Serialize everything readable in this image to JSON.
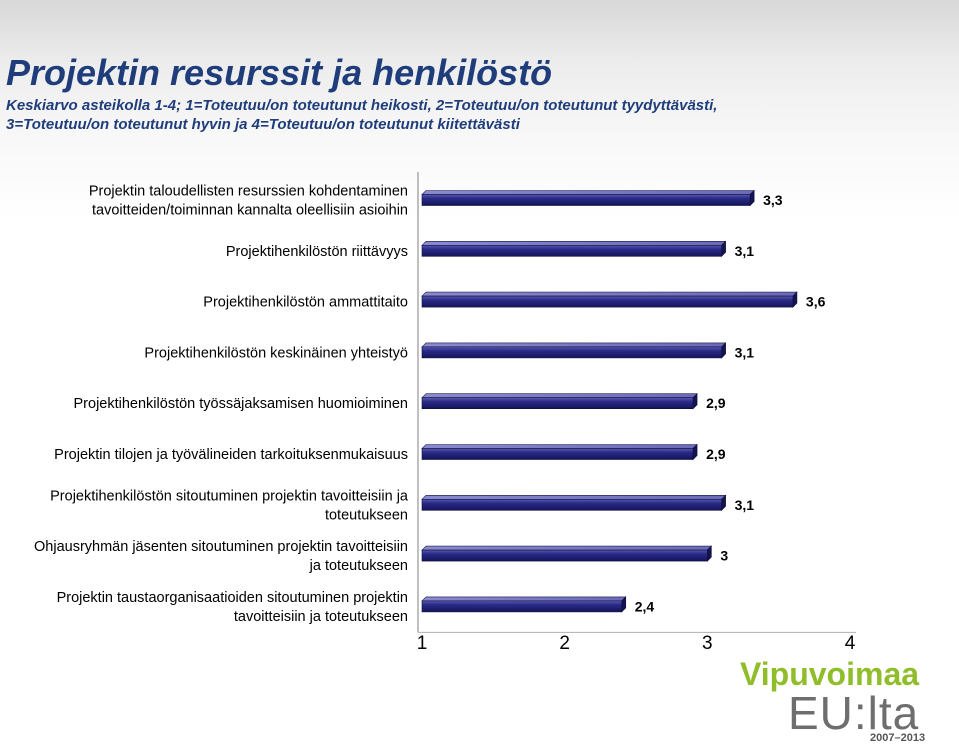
{
  "header": {
    "title": "Projektin resurssit ja henkilöstö",
    "subtitle_line1": "Keskiarvo asteikolla 1-4; 1=Toteutuu/on toteutunut heikosti, 2=Toteutuu/on toteutunut tyydyttävästi,",
    "subtitle_line2": "3=Toteutuu/on toteutunut hyvin ja 4=Toteutuu/on toteutunut kiitettävästi"
  },
  "chart_data": {
    "type": "bar",
    "orientation": "horizontal",
    "title": "",
    "xlabel": "",
    "ylabel": "",
    "xlim": [
      1,
      4
    ],
    "xticks": [
      "1",
      "2",
      "3",
      "4"
    ],
    "grid": false,
    "bar_color": "#1f1f6e",
    "categories": [
      [
        "Projektin taloudellisten resurssien kohdentaminen",
        "tavoitteiden/toiminnan kannalta oleellisiin asioihin"
      ],
      [
        "Projektihenkilöstön riittävyys"
      ],
      [
        "Projektihenkilöstön ammattitaito"
      ],
      [
        "Projektihenkilöstön keskinäinen yhteistyö"
      ],
      [
        "Projektihenkilöstön työssäjaksamisen huomioiminen"
      ],
      [
        "Projektin tilojen ja työvälineiden tarkoituksenmukaisuus"
      ],
      [
        "Projektihenkilöstön sitoutuminen projektin tavoitteisiin ja",
        "toteutukseen"
      ],
      [
        "Ohjausryhmän jäsenten sitoutuminen projektin tavoitteisiin",
        "ja toteutukseen"
      ],
      [
        "Projektin taustaorganisaatioiden sitoutuminen projektin",
        "tavoitteisiin ja toteutukseen"
      ]
    ],
    "values": [
      3.3,
      3.1,
      3.6,
      3.1,
      2.9,
      2.9,
      3.1,
      3.0,
      2.4
    ],
    "value_labels": [
      "3,3",
      "3,1",
      "3,6",
      "3,1",
      "2,9",
      "2,9",
      "3,1",
      "3",
      "2,4"
    ]
  },
  "logo": {
    "line1": "Vipuvoimaa",
    "line2": "EU:lta",
    "years": "2007–2013",
    "color_green": "#8fbe2a",
    "color_gray": "#6e6e6e"
  }
}
